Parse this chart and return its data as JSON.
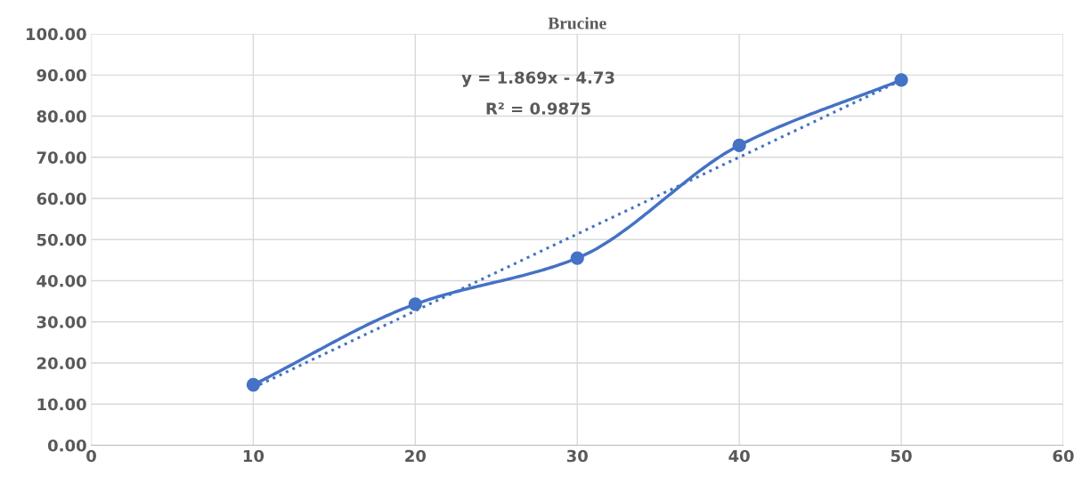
{
  "chart_data": {
    "type": "line",
    "title": "Brucine",
    "x": [
      10,
      20,
      30,
      40,
      50
    ],
    "series": [
      {
        "color": "#4472c4",
        "values": [
          14.7,
          34.3,
          45.5,
          72.9,
          88.8
        ],
        "marker": "circle",
        "line_style": "solid"
      },
      {
        "type": "line",
        "color": "#4472c4",
        "x": [
          10,
          50
        ],
        "values": [
          14.0,
          88.7
        ],
        "marker": "none",
        "line_style": "dotted"
      }
    ],
    "xlim": [
      0,
      60
    ],
    "xticks": [
      0,
      10,
      20,
      30,
      40,
      50,
      60
    ],
    "ylim": [
      0,
      100
    ],
    "yticks": [
      {
        "value": 0,
        "label": "0.00"
      },
      {
        "value": 10,
        "label": "10.00"
      },
      {
        "value": 20,
        "label": "20.00"
      },
      {
        "value": 30,
        "label": "30.00"
      },
      {
        "value": 40,
        "label": "40.00"
      },
      {
        "value": 50,
        "label": "50.00"
      },
      {
        "value": 60,
        "label": "60.00"
      },
      {
        "value": 70,
        "label": "70.00"
      },
      {
        "value": 80,
        "label": "80.00"
      },
      {
        "value": 90,
        "label": "90.00"
      },
      {
        "value": 100,
        "label": "100.00"
      }
    ],
    "grid": true,
    "annotations": [
      "y = 1.869x - 4.73",
      "R² = 0.9875"
    ]
  }
}
